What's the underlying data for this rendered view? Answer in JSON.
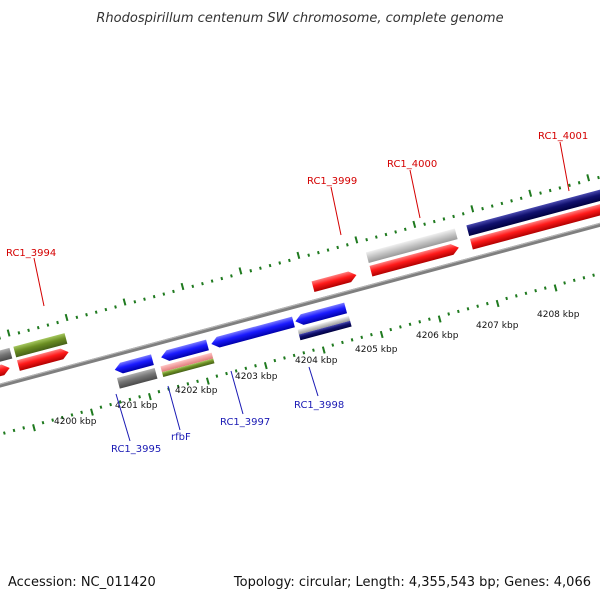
{
  "title": "Rhodospirillum centenum SW chromosome, complete genome",
  "footer": {
    "accession": "Accession: NC_011420",
    "summary": "Topology: circular; Length: 4,355,543 bp; Genes: 4,066"
  },
  "colors": {
    "label_forward": "#d40000",
    "label_reverse": "#1a1ab4",
    "tick": "#1f7a1f",
    "backbone": "#7f7f7f"
  },
  "scale_labels": [
    "4200 kbp",
    "4201 kbp",
    "4202 kbp",
    "4203 kbp",
    "4204 kbp",
    "4205 kbp",
    "4206 kbp",
    "4207 kbp",
    "4208 kbp"
  ],
  "forward_labels": [
    "RC1_3994",
    "RC1_3999",
    "RC1_4000",
    "RC1_4001"
  ],
  "reverse_labels": [
    "RC1_3995",
    "rfbF",
    "RC1_3997",
    "RC1_3998"
  ]
}
